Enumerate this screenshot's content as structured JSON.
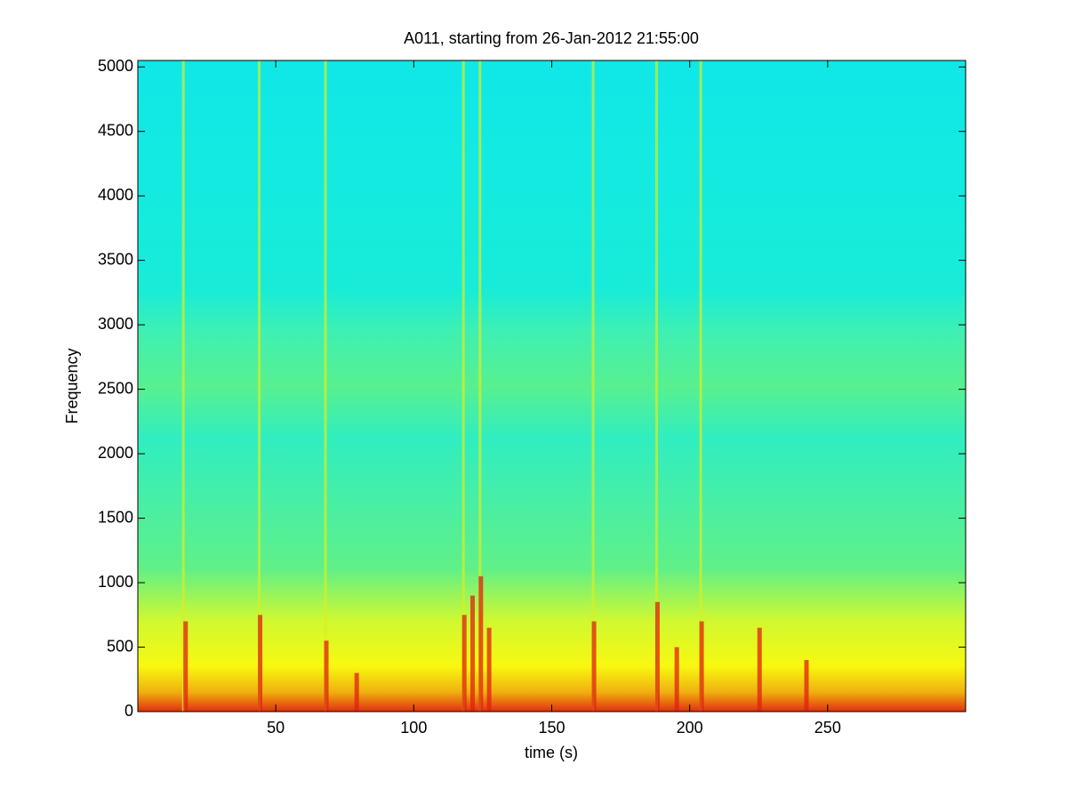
{
  "chart_data": {
    "type": "spectrogram",
    "title": "A011, starting from 26-Jan-2012 21:55:00",
    "x_label": "time (s)",
    "y_label": "Frequency",
    "xlim": [
      0,
      300
    ],
    "ylim": [
      0,
      5050
    ],
    "xticks": [
      50,
      100,
      150,
      200,
      250
    ],
    "yticks": [
      0,
      500,
      1000,
      1500,
      2000,
      2500,
      3000,
      3500,
      4000,
      4500,
      5000
    ],
    "series": [
      {
        "color": "#d8f020",
        "x": [
          16.5,
          44,
          68,
          118,
          124,
          165,
          188,
          204
        ],
        "values": [
          5050,
          5050,
          5050,
          5050,
          5050,
          5050,
          5050,
          5050
        ]
      },
      {
        "color": "#e02010",
        "x": [
          17,
          44,
          68,
          79,
          118,
          121,
          124,
          127,
          165,
          188,
          195,
          204,
          225,
          242
        ],
        "values": [
          700,
          750,
          550,
          300,
          750,
          900,
          1050,
          650,
          700,
          850,
          500,
          700,
          650,
          400
        ]
      }
    ]
  }
}
